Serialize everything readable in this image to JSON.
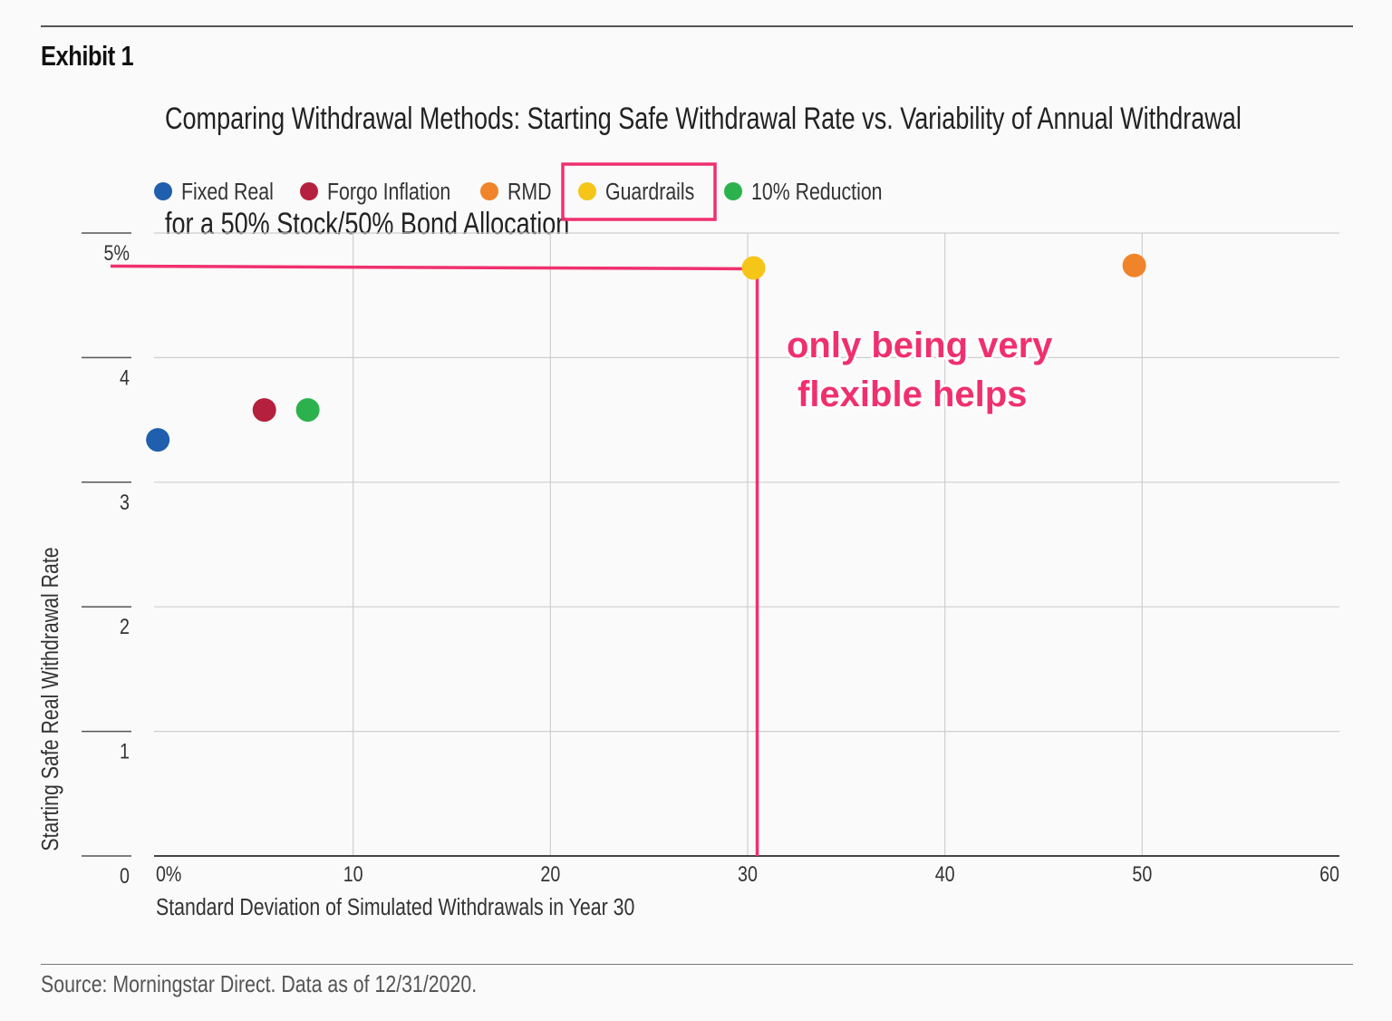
{
  "header": {
    "exhibit_label": "Exhibit 1",
    "title_line1": "Comparing Withdrawal Methods: Starting Safe Withdrawal Rate vs. Variability of Annual Withdrawal",
    "title_line2": "for a 50% Stock/50% Bond Allocation"
  },
  "footer": {
    "source": "Source: Morningstar Direct. Data as of 12/31/2020."
  },
  "annotation": {
    "line1": "only being very",
    "line2": "flexible helps",
    "color": "#f0306e"
  },
  "chart_data": {
    "type": "scatter",
    "title": "Comparing Withdrawal Methods: Starting Safe Withdrawal Rate vs. Variability of Annual Withdrawal for a 50% Stock/50% Bond Allocation",
    "xlabel": "Standard Deviation of Simulated Withdrawals in Year 30",
    "ylabel": "Starting Safe Real Withdrawal Rate",
    "xlim": [
      0,
      60
    ],
    "ylim": [
      0,
      5
    ],
    "x_ticks": [
      "0%",
      "10",
      "20",
      "30",
      "40",
      "50",
      "60"
    ],
    "x_tick_values": [
      0,
      10,
      20,
      30,
      40,
      50,
      60
    ],
    "y_ticks": [
      "0",
      "1",
      "2",
      "3",
      "4",
      "5%"
    ],
    "y_tick_values": [
      0,
      1,
      2,
      3,
      4,
      5
    ],
    "grid": true,
    "legend_position": "top-left",
    "highlighted_series": "Guardrails",
    "series": [
      {
        "name": "Fixed Real",
        "color": "#1f5fad",
        "x": 0.1,
        "y": 3.34
      },
      {
        "name": "Forgo Inflation",
        "color": "#b4203e",
        "x": 5.5,
        "y": 3.58
      },
      {
        "name": "RMD",
        "color": "#f0842a",
        "x": 49.6,
        "y": 4.74
      },
      {
        "name": "Guardrails",
        "color": "#f5c518",
        "x": 30.3,
        "y": 4.72
      },
      {
        "name": "10% Reduction",
        "color": "#2bb24c",
        "x": 7.7,
        "y": 3.58
      }
    ]
  }
}
